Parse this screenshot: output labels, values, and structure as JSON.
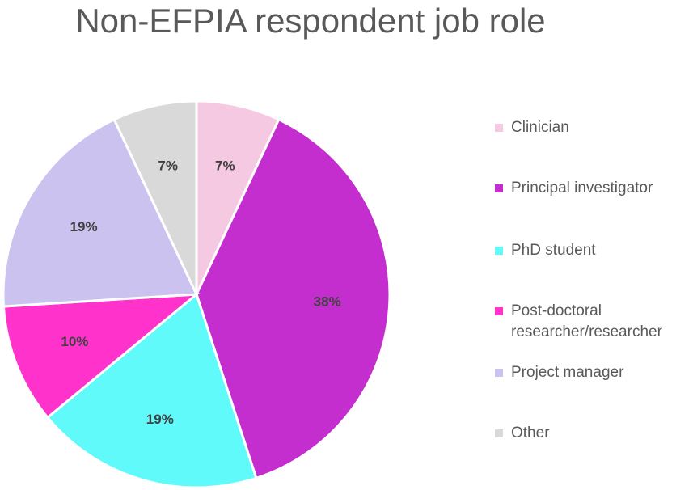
{
  "chart_data": {
    "type": "pie",
    "title": "Non-EFPIA respondent job role",
    "legend_position": "right",
    "slices": [
      {
        "name": "Clinician",
        "value": 7,
        "label": "7%",
        "color": "#F6C9E3"
      },
      {
        "name": "Principal investigator",
        "value": 38,
        "label": "38%",
        "color": "#C42ECE"
      },
      {
        "name": "PhD student",
        "value": 19,
        "label": "19%",
        "color": "#60FAFA"
      },
      {
        "name": "Post-doctoral\nresearcher/researcher",
        "value": 10,
        "label": "10%",
        "color": "#FF33CC"
      },
      {
        "name": "Project manager",
        "value": 19,
        "label": "19%",
        "color": "#CCC2F0"
      },
      {
        "name": "Other",
        "value": 7,
        "label": "7%",
        "color": "#D9D9D9"
      }
    ]
  }
}
